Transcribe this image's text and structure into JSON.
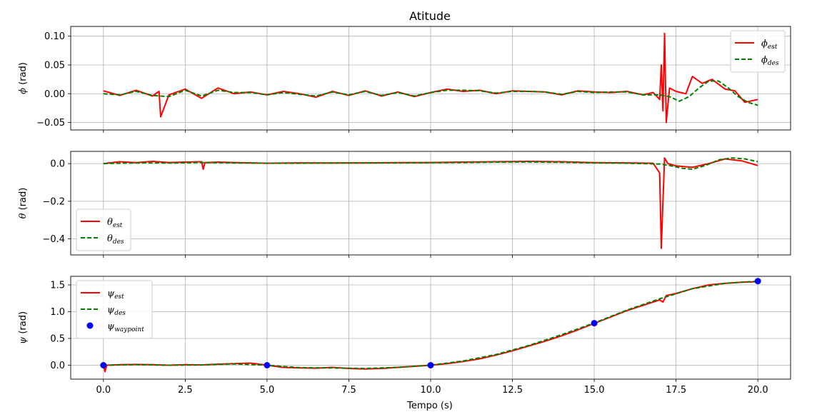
{
  "chart_data": {
    "type": "line",
    "title": "Atitude",
    "xlabel": "Tempo (s)",
    "xlim": [
      -1.0,
      21.0
    ],
    "x_ticks": [
      0.0,
      2.5,
      5.0,
      7.5,
      10.0,
      12.5,
      15.0,
      17.5,
      20.0
    ],
    "x_tick_labels": [
      "0.0",
      "2.5",
      "5.0",
      "7.5",
      "10.0",
      "12.5",
      "15.0",
      "17.5",
      "20.0"
    ],
    "grid": true,
    "colors": {
      "est": "#ff0000",
      "des": "#008000",
      "waypoint": "#0000ff"
    },
    "subplots": [
      {
        "ylabel_symbol": "ϕ",
        "ylabel_unit": " (rad)",
        "ylim": [
          -0.063,
          0.117
        ],
        "y_ticks": [
          -0.05,
          0.0,
          0.05,
          0.1
        ],
        "y_tick_labels": [
          "−0.05",
          "0.00",
          "0.05",
          "0.10"
        ],
        "legend_position": "top-right",
        "series": [
          {
            "name_symbol": "ϕ",
            "name_sub": "est",
            "style": "solid",
            "color": "#ff0000",
            "x": [
              0,
              0.5,
              1.0,
              1.5,
              1.7,
              1.75,
              2.0,
              2.5,
              3.0,
              3.5,
              4.0,
              4.5,
              5.0,
              5.5,
              6.0,
              6.5,
              7.0,
              7.5,
              8.0,
              8.5,
              9.0,
              9.5,
              10.0,
              10.5,
              11.0,
              11.5,
              12.0,
              12.5,
              13.0,
              13.5,
              14.0,
              14.5,
              15.0,
              15.5,
              16.0,
              16.5,
              16.8,
              17.0,
              17.05,
              17.1,
              17.15,
              17.2,
              17.3,
              17.5,
              17.8,
              18.0,
              18.3,
              18.6,
              19.0,
              19.3,
              19.6,
              20.0
            ],
            "y": [
              0.005,
              -0.003,
              0.006,
              -0.004,
              0.004,
              -0.04,
              -0.002,
              0.008,
              -0.008,
              0.01,
              0.0,
              0.003,
              -0.002,
              0.004,
              0.0,
              -0.006,
              0.004,
              -0.003,
              0.005,
              -0.004,
              0.003,
              -0.005,
              0.002,
              0.008,
              0.004,
              0.006,
              0.0,
              0.005,
              0.004,
              0.003,
              -0.002,
              0.005,
              0.003,
              0.002,
              0.004,
              -0.002,
              0.002,
              -0.01,
              0.05,
              -0.03,
              0.105,
              -0.05,
              0.01,
              0.004,
              0.0,
              0.03,
              0.018,
              0.025,
              0.008,
              0.005,
              -0.015,
              -0.01
            ]
          },
          {
            "name_symbol": "ϕ",
            "name_sub": "des",
            "style": "dashed",
            "color": "#008000",
            "x": [
              0,
              0.5,
              1.0,
              1.5,
              2.0,
              2.5,
              3.0,
              3.5,
              4.0,
              4.5,
              5.0,
              5.5,
              6.0,
              6.5,
              7.0,
              7.5,
              8.0,
              8.5,
              9.0,
              9.5,
              10.0,
              10.5,
              11.0,
              11.5,
              12.0,
              12.5,
              13.0,
              13.5,
              14.0,
              14.5,
              15.0,
              15.5,
              16.0,
              16.5,
              17.0,
              17.3,
              17.6,
              17.9,
              18.2,
              18.5,
              18.8,
              19.1,
              19.4,
              19.7,
              20.0
            ],
            "y": [
              0.0,
              -0.002,
              0.004,
              -0.003,
              -0.005,
              0.006,
              -0.004,
              0.006,
              0.002,
              0.002,
              -0.002,
              0.002,
              -0.001,
              -0.004,
              0.003,
              -0.002,
              0.004,
              -0.003,
              0.002,
              -0.004,
              0.002,
              0.006,
              0.006,
              0.005,
              0.001,
              0.004,
              0.004,
              0.003,
              -0.001,
              0.004,
              0.002,
              0.003,
              0.003,
              -0.002,
              -0.002,
              -0.005,
              -0.013,
              -0.005,
              0.01,
              0.022,
              0.022,
              0.01,
              -0.005,
              -0.015,
              -0.02
            ]
          }
        ]
      },
      {
        "ylabel_symbol": "θ",
        "ylabel_unit": " (rad)",
        "ylim": [
          -0.485,
          0.065
        ],
        "y_ticks": [
          -0.4,
          -0.2,
          0.0
        ],
        "y_tick_labels": [
          "−0.4",
          "−0.2",
          "0.0"
        ],
        "legend_position": "bottom-left",
        "series": [
          {
            "name_symbol": "θ",
            "name_sub": "est",
            "style": "solid",
            "color": "#ff0000",
            "x": [
              0,
              0.5,
              1.0,
              1.5,
              2.0,
              2.5,
              3.0,
              3.05,
              3.1,
              3.5,
              4.0,
              5.0,
              6.0,
              7.0,
              8.0,
              9.0,
              10.0,
              11.0,
              12.0,
              13.0,
              14.0,
              15.0,
              16.0,
              16.8,
              17.0,
              17.05,
              17.1,
              17.15,
              17.25,
              17.5,
              18.0,
              18.5,
              19.0,
              19.5,
              20.0
            ],
            "y": [
              0.0,
              0.01,
              0.005,
              0.012,
              0.006,
              0.008,
              0.01,
              -0.03,
              0.005,
              0.008,
              0.006,
              0.002,
              0.004,
              0.003,
              0.004,
              0.005,
              0.006,
              0.008,
              0.01,
              0.012,
              0.01,
              0.005,
              0.004,
              0.002,
              -0.05,
              -0.45,
              -0.2,
              0.03,
              0.0,
              -0.012,
              -0.02,
              0.0,
              0.025,
              0.015,
              -0.01
            ]
          },
          {
            "name_symbol": "θ",
            "name_sub": "des",
            "style": "dashed",
            "color": "#008000",
            "x": [
              0,
              1.0,
              2.0,
              3.0,
              4.0,
              5.0,
              6.0,
              7.0,
              8.0,
              9.0,
              10.0,
              11.0,
              12.0,
              13.0,
              14.0,
              15.0,
              16.0,
              17.0,
              17.3,
              17.7,
              18.0,
              18.4,
              18.8,
              19.2,
              19.6,
              20.0
            ],
            "y": [
              0.0,
              0.004,
              0.003,
              0.006,
              0.004,
              0.002,
              0.002,
              0.003,
              0.003,
              0.004,
              0.005,
              0.006,
              0.008,
              0.009,
              0.007,
              0.004,
              0.002,
              -0.002,
              -0.01,
              -0.025,
              -0.03,
              -0.01,
              0.02,
              0.03,
              0.025,
              0.01
            ]
          }
        ]
      },
      {
        "ylabel_symbol": "ψ",
        "ylabel_unit": " (rad)",
        "ylim": [
          -0.26,
          1.66
        ],
        "y_ticks": [
          0.0,
          0.5,
          1.0,
          1.5
        ],
        "y_tick_labels": [
          "0.0",
          "0.5",
          "1.0",
          "1.5"
        ],
        "legend_position": "top-left",
        "series": [
          {
            "name_symbol": "ψ",
            "name_sub": "est",
            "style": "solid",
            "color": "#ff0000",
            "x": [
              0,
              0.05,
              0.1,
              0.5,
              1.0,
              1.5,
              2.0,
              2.5,
              3.0,
              3.5,
              4.0,
              4.5,
              5.0,
              5.5,
              6.0,
              6.5,
              7.0,
              7.5,
              8.0,
              8.5,
              9.0,
              9.5,
              10.0,
              10.5,
              11.0,
              11.5,
              12.0,
              12.5,
              13.0,
              13.5,
              14.0,
              14.5,
              15.0,
              15.5,
              16.0,
              16.5,
              17.0,
              17.1,
              17.2,
              17.5,
              18.0,
              18.5,
              19.0,
              19.5,
              20.0
            ],
            "y": [
              0.0,
              -0.12,
              0.0,
              0.01,
              0.015,
              0.01,
              0.0,
              0.01,
              0.005,
              0.02,
              0.03,
              0.04,
              0.0,
              -0.04,
              -0.05,
              -0.055,
              -0.04,
              -0.06,
              -0.07,
              -0.06,
              -0.04,
              -0.02,
              0.0,
              0.03,
              0.07,
              0.12,
              0.19,
              0.27,
              0.36,
              0.45,
              0.55,
              0.66,
              0.78,
              0.9,
              1.02,
              1.12,
              1.22,
              1.18,
              1.3,
              1.34,
              1.43,
              1.5,
              1.53,
              1.55,
              1.56
            ]
          },
          {
            "name_symbol": "ψ",
            "name_sub": "des",
            "style": "dashed",
            "color": "#008000",
            "x": [
              0,
              1.0,
              2.0,
              3.0,
              4.0,
              5.0,
              6.0,
              7.0,
              8.0,
              9.0,
              10.0,
              11.0,
              12.0,
              13.0,
              14.0,
              15.0,
              16.0,
              17.0,
              18.0,
              19.0,
              20.0
            ],
            "y": [
              0.0,
              0.01,
              0.0,
              0.005,
              0.025,
              0.0,
              -0.045,
              -0.05,
              -0.06,
              -0.04,
              0.0,
              0.08,
              0.2,
              0.37,
              0.57,
              0.79,
              1.03,
              1.24,
              1.43,
              1.53,
              1.57
            ]
          },
          {
            "name_symbol": "ψ",
            "name_sub": "waypoint",
            "style": "points",
            "color": "#0000ff",
            "x": [
              0,
              5,
              10,
              15,
              20
            ],
            "y": [
              0.0,
              0.0,
              0.0,
              0.785,
              1.5708
            ]
          }
        ]
      }
    ]
  }
}
